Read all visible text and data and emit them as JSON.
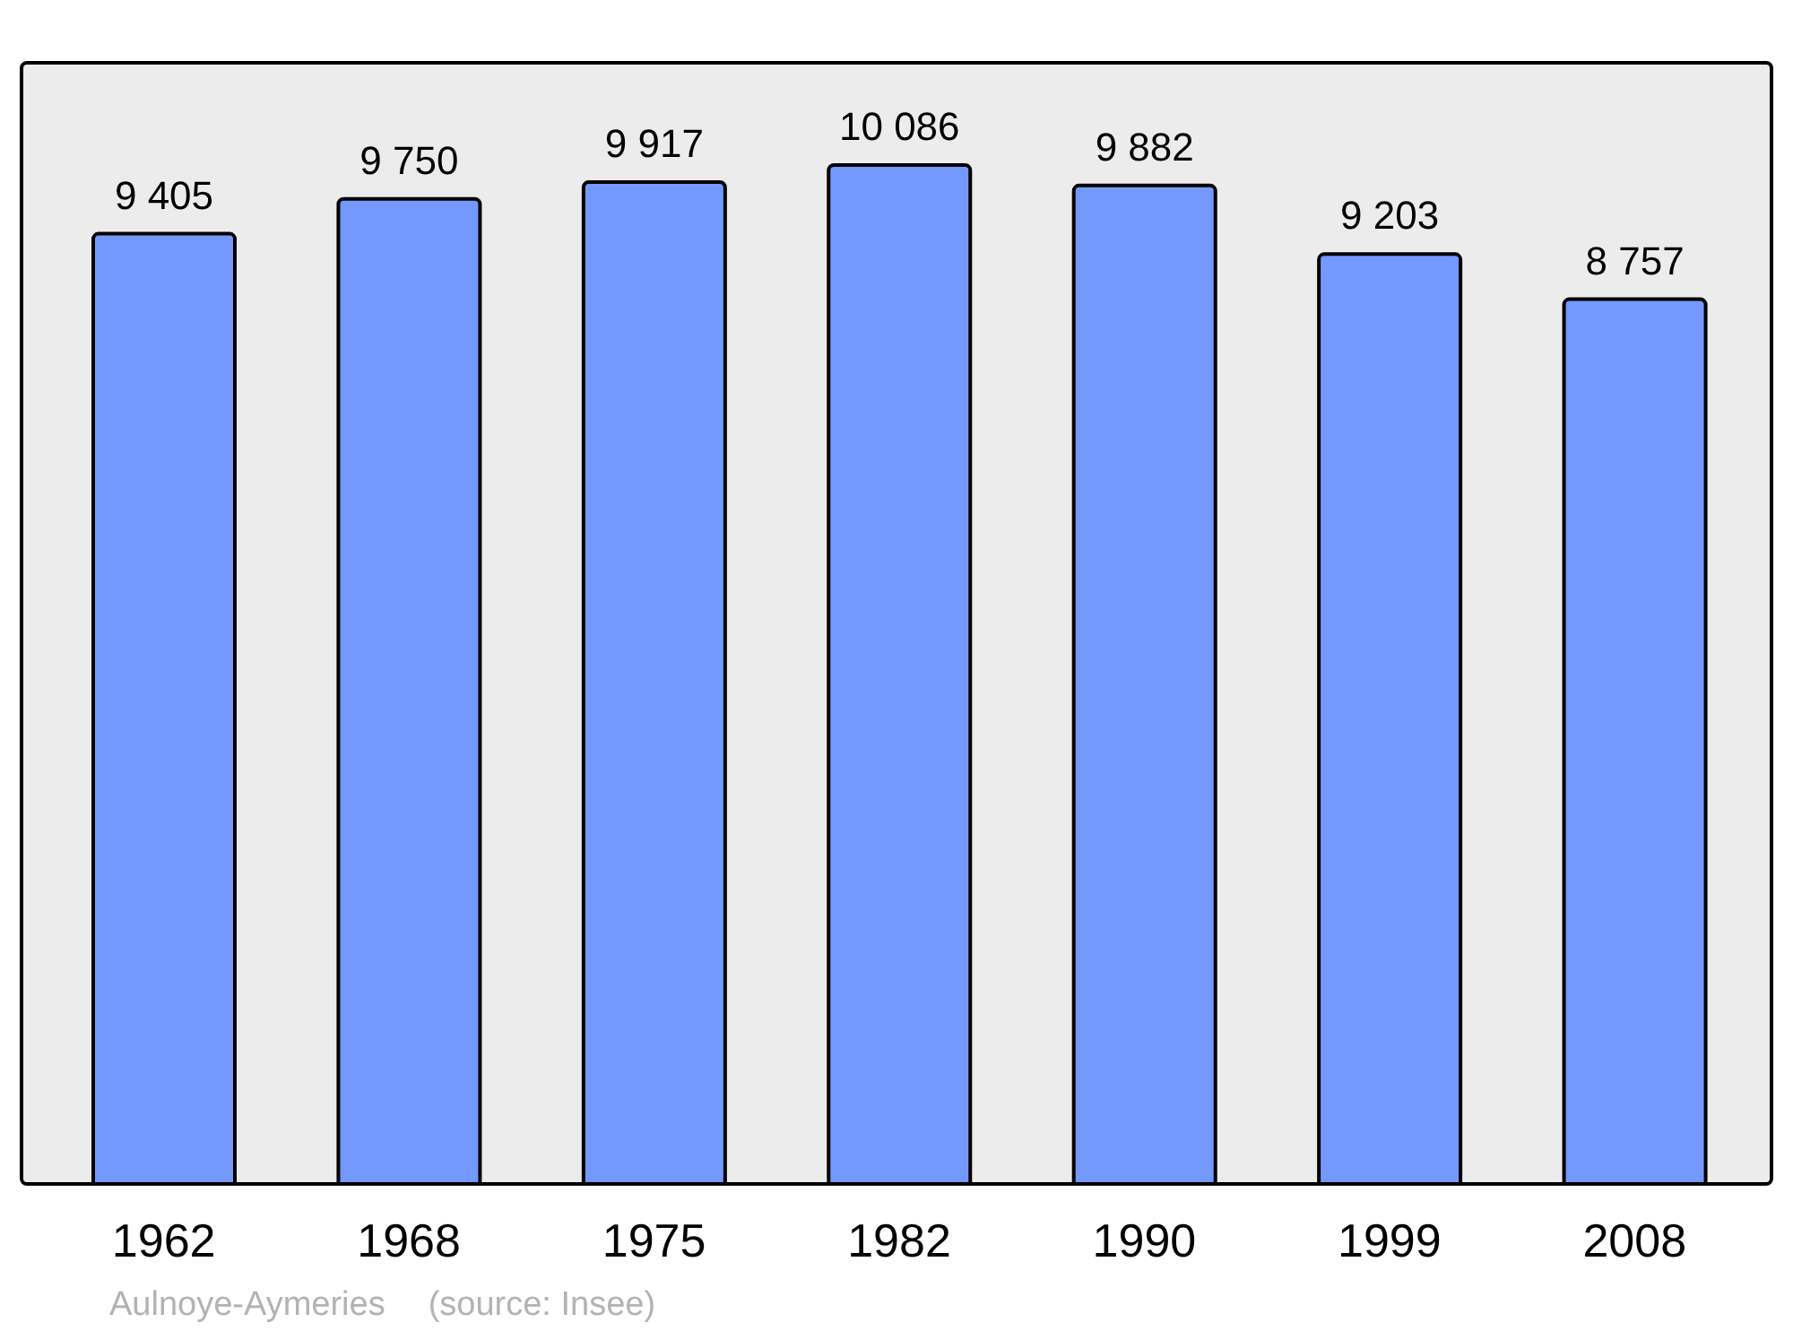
{
  "chart_data": {
    "type": "bar",
    "categories": [
      "1962",
      "1968",
      "1975",
      "1982",
      "1990",
      "1999",
      "2008"
    ],
    "values": [
      9405,
      9750,
      9917,
      10086,
      9882,
      9203,
      8757
    ],
    "value_labels": [
      "9 405",
      "9 750",
      "9 917",
      "10 086",
      "9 882",
      "9 203",
      "8 757"
    ],
    "color": "#7399ff",
    "annotations": [
      "Aulnoye-Aymeries",
      "(source: Insee)"
    ]
  }
}
